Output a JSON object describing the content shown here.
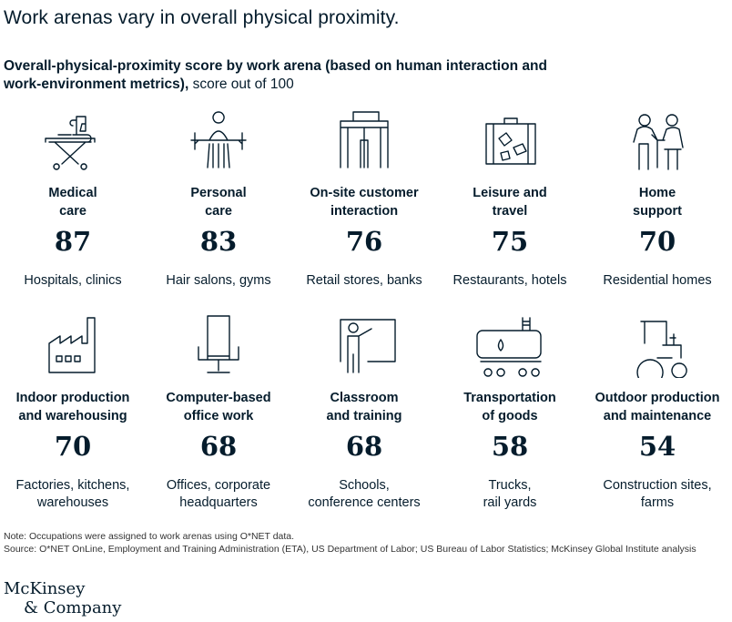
{
  "title": "Work arenas vary in overall physical proximity.",
  "subtitle_bold": "Overall-physical-proximity score by work arena (based on human interaction and work-environment metrics),",
  "subtitle_rest": " score out of 100",
  "chart_data": {
    "type": "table",
    "title": "Overall-physical-proximity score by work arena (based on human interaction and work-environment metrics), score out of 100",
    "categories": [
      "Medical care",
      "Personal care",
      "On-site customer interaction",
      "Leisure and travel",
      "Home support",
      "Indoor production and warehousing",
      "Computer-based office work",
      "Classroom and training",
      "Transportation of goods",
      "Outdoor production and maintenance"
    ],
    "values": [
      87,
      83,
      76,
      75,
      70,
      70,
      68,
      68,
      58,
      54
    ],
    "ylim": [
      0,
      100
    ],
    "arenas": [
      {
        "line1": "Medical",
        "line2": "care",
        "score": "87",
        "desc1": "Hospitals, clinics",
        "desc2": "",
        "icon": "hospital-bed-icon"
      },
      {
        "line1": "Personal",
        "line2": "care",
        "score": "83",
        "desc1": "Hair salons, gyms",
        "desc2": "",
        "icon": "salon-chair-icon"
      },
      {
        "line1": "On-site customer",
        "line2": "interaction",
        "score": "76",
        "desc1": "Retail stores, banks",
        "desc2": "",
        "icon": "storefront-icon"
      },
      {
        "line1": "Leisure and",
        "line2": "travel",
        "score": "75",
        "desc1": "Restaurants, hotels",
        "desc2": "",
        "icon": "suitcase-icon"
      },
      {
        "line1": "Home",
        "line2": "support",
        "score": "70",
        "desc1": "Residential homes",
        "desc2": "",
        "icon": "caregiver-icon"
      },
      {
        "line1": "Indoor production",
        "line2": "and warehousing",
        "score": "70",
        "desc1": "Factories, kitchens,",
        "desc2": "warehouses",
        "icon": "factory-icon"
      },
      {
        "line1": "Computer-based",
        "line2": "office work",
        "score": "68",
        "desc1": "Offices, corporate",
        "desc2": "headquarters",
        "icon": "office-chair-icon"
      },
      {
        "line1": "Classroom",
        "line2": "and training",
        "score": "68",
        "desc1": "Schools,",
        "desc2": "conference centers",
        "icon": "teacher-board-icon"
      },
      {
        "line1": "Transportation",
        "line2": "of goods",
        "score": "58",
        "desc1": "Trucks,",
        "desc2": "rail yards",
        "icon": "tanker-truck-icon"
      },
      {
        "line1": "Outdoor production",
        "line2": "and maintenance",
        "score": "54",
        "desc1": "Construction sites,",
        "desc2": "farms",
        "icon": "tractor-icon"
      }
    ]
  },
  "note": "Note: Occupations were assigned to work arenas using O*NET data.",
  "source": "Source: O*NET OnLine, Employment and Training Administration (ETA), US Department of Labor; US Bureau of Labor Statistics; McKinsey Global Institute analysis",
  "logo_line1": "McKinsey",
  "logo_line2": "& Company"
}
